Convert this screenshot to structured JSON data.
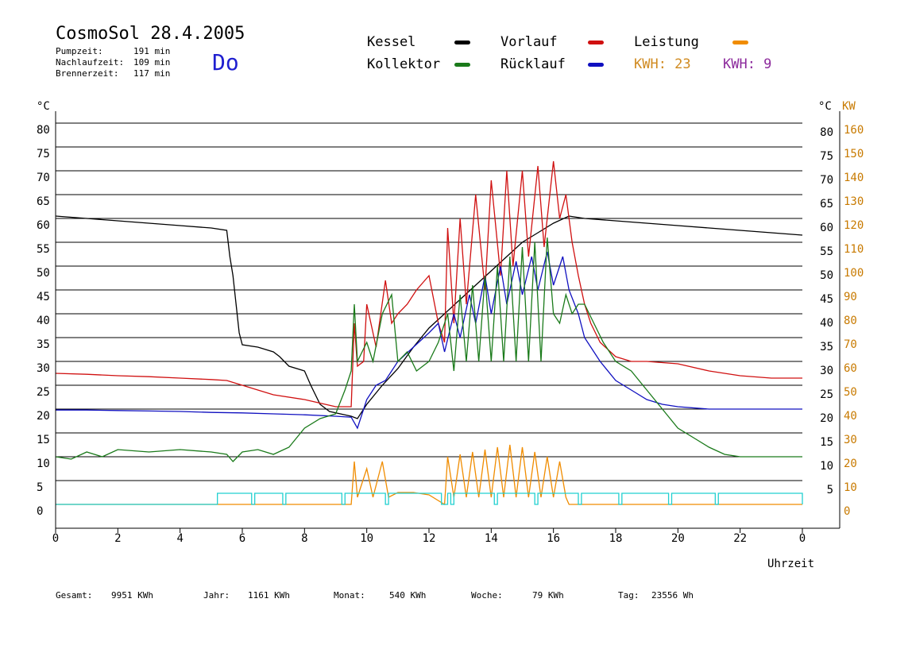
{
  "header": {
    "title": "CosmoSol 28.4.2005",
    "day": "Do",
    "info": [
      {
        "label": "Pumpzeit:",
        "value": "191 min"
      },
      {
        "label": "Nachlaufzeit:",
        "value": "109 min"
      },
      {
        "label": "Brennerzeit:",
        "value": "117 min"
      }
    ]
  },
  "legend": {
    "kessel": "Kessel",
    "kollektor": "Kollektor",
    "vorlauf": "Vorlauf",
    "ruecklauf": "Rücklauf",
    "leistung": "Leistung",
    "kwh1": "KWH: 23",
    "kwh2": "KWH: 9"
  },
  "axes": {
    "left_unit": "°C",
    "right_unit_c": "°C",
    "right_unit_kw": "KW",
    "xlabel": "Uhrzeit",
    "left_ticks": [
      "80",
      "75",
      "70",
      "65",
      "60",
      "55",
      "50",
      "45",
      "40",
      "35",
      "30",
      "25",
      "20",
      "15",
      "10",
      "5",
      "0"
    ],
    "right_c_ticks": [
      "80",
      "75",
      "70",
      "65",
      "60",
      "55",
      "50",
      "45",
      "40",
      "35",
      "30",
      "25",
      "20",
      "15",
      "10",
      "5"
    ],
    "right_kw_ticks": [
      "160",
      "150",
      "140",
      "130",
      "120",
      "110",
      "100",
      "90",
      "80",
      "70",
      "60",
      "50",
      "40",
      "30",
      "20",
      "10",
      "0"
    ],
    "x_ticks": [
      "0",
      "2",
      "4",
      "6",
      "8",
      "10",
      "12",
      "14",
      "16",
      "18",
      "20",
      "22",
      "0"
    ]
  },
  "footer": {
    "gesamt_label": "Gesamt:",
    "gesamt_value": "9951 KWh",
    "jahr_label": "Jahr:",
    "jahr_value": "1161 KWh",
    "monat_label": "Monat:",
    "monat_value": "540 KWh",
    "woche_label": "Woche:",
    "woche_value": "79 KWh",
    "tag_label": "Tag:",
    "tag_value": "23556 Wh"
  },
  "colors": {
    "kessel": "#000000",
    "kollektor": "#1a7a1a",
    "vorlauf": "#d01010",
    "ruecklauf": "#1010c0",
    "leistung": "#f08c00",
    "kwh2": "#8c2a9c",
    "pump": "#20d0d0"
  },
  "chart_data": {
    "type": "line",
    "xlabel": "Uhrzeit",
    "ylabel": "°C",
    "xlim": [
      0,
      24
    ],
    "ylim": [
      0,
      80
    ],
    "y2label": "KW",
    "y2lim": [
      0,
      160
    ],
    "series": [
      {
        "name": "Kessel",
        "x": [
          0,
          1,
          2,
          3,
          4,
          5,
          5.5,
          5.6,
          5.7,
          5.8,
          5.9,
          6,
          6.5,
          7,
          7.2,
          7.5,
          8,
          8.2,
          8.5,
          8.8,
          9.5,
          9.7,
          10,
          10.5,
          11,
          11.5,
          12,
          12.5,
          13,
          13.5,
          14,
          14.5,
          15,
          15.5,
          16,
          16.5,
          17,
          18,
          19,
          20,
          21,
          22,
          23,
          24
        ],
        "y": [
          60.5,
          60,
          59.5,
          59,
          58.5,
          58,
          57.5,
          52,
          48,
          42,
          36,
          33.5,
          33,
          32,
          31,
          29,
          28,
          25,
          21,
          19.5,
          18.5,
          18,
          21,
          25,
          28.5,
          33,
          37,
          40,
          43,
          46,
          49,
          52,
          55,
          57,
          59,
          60.5,
          60,
          59.5,
          59,
          58.5,
          58,
          57.5,
          57,
          56.5
        ]
      },
      {
        "name": "Vorlauf",
        "x": [
          0,
          1,
          2,
          3,
          4,
          5,
          5.5,
          6,
          6.5,
          7,
          8,
          9,
          9.5,
          9.6,
          9.7,
          9.9,
          10,
          10.3,
          10.6,
          10.8,
          11,
          11.3,
          11.6,
          12,
          12.3,
          12.5,
          12.6,
          12.8,
          13,
          13.2,
          13.5,
          13.8,
          14,
          14.3,
          14.5,
          14.7,
          15,
          15.2,
          15.5,
          15.7,
          16,
          16.2,
          16.4,
          16.6,
          16.8,
          17,
          17.2,
          17.5,
          18,
          18.5,
          19,
          20,
          21,
          22,
          23,
          24
        ],
        "y": [
          27.5,
          27.3,
          27,
          26.8,
          26.5,
          26.2,
          26,
          25,
          24,
          23,
          22,
          20.5,
          20.5,
          38,
          29,
          30,
          42,
          33,
          47,
          38,
          40,
          42,
          45,
          48,
          38,
          34,
          58,
          38,
          60,
          42,
          65,
          45,
          68,
          48,
          70,
          50,
          70,
          52,
          71,
          54,
          72,
          60,
          65,
          55,
          48,
          42,
          38,
          34,
          31,
          30,
          30,
          29.5,
          28,
          27,
          26.5,
          26.5
        ]
      },
      {
        "name": "Rücklauf",
        "x": [
          0,
          1,
          2,
          3,
          4,
          5,
          6,
          7,
          8,
          9,
          9.5,
          9.7,
          9.9,
          10,
          10.3,
          10.6,
          11,
          11.5,
          12,
          12.3,
          12.5,
          12.8,
          13,
          13.3,
          13.5,
          13.8,
          14,
          14.3,
          14.5,
          14.8,
          15,
          15.3,
          15.5,
          15.8,
          16,
          16.3,
          16.5,
          16.8,
          17,
          17.5,
          18,
          18.5,
          19,
          19.5,
          20,
          21,
          22,
          23,
          24
        ],
        "y": [
          19.8,
          19.8,
          19.7,
          19.6,
          19.5,
          19.3,
          19.2,
          19,
          18.8,
          18.5,
          18.3,
          16,
          20,
          22,
          25,
          26,
          30,
          33,
          36,
          38,
          32,
          40,
          35,
          44,
          38,
          48,
          40,
          50,
          42,
          51,
          44,
          52,
          45,
          53,
          46,
          52,
          45,
          40,
          35,
          30,
          26,
          24,
          22,
          21,
          20.5,
          20,
          20,
          20,
          20
        ]
      },
      {
        "name": "Kollektor",
        "x": [
          0,
          0.5,
          1,
          1.5,
          2,
          3,
          4,
          5,
          5.5,
          5.7,
          6,
          6.5,
          7,
          7.5,
          8,
          8.5,
          9,
          9.3,
          9.5,
          9.6,
          9.7,
          10,
          10.2,
          10.5,
          10.8,
          11,
          11.3,
          11.6,
          12,
          12.3,
          12.6,
          12.8,
          13,
          13.2,
          13.4,
          13.6,
          13.8,
          14,
          14.2,
          14.4,
          14.6,
          14.8,
          15,
          15.2,
          15.4,
          15.6,
          15.8,
          16,
          16.2,
          16.4,
          16.6,
          16.8,
          17,
          17.3,
          17.6,
          18,
          18.5,
          19,
          19.5,
          20,
          20.5,
          21,
          21.5,
          22,
          22.5,
          23,
          24
        ],
        "y": [
          10,
          9.5,
          11,
          10,
          11.5,
          11,
          11.5,
          11,
          10.5,
          9,
          11,
          11.5,
          10.5,
          12,
          16,
          18,
          19,
          24,
          28,
          42,
          30,
          34,
          30,
          40,
          44,
          30,
          32,
          28,
          30,
          34,
          40,
          28,
          44,
          30,
          46,
          30,
          48,
          30,
          50,
          30,
          52,
          30,
          54,
          30,
          55,
          30,
          56,
          40,
          38,
          44,
          40,
          42,
          42,
          38,
          34,
          30,
          28,
          24,
          20,
          16,
          14,
          12,
          10.5,
          10,
          10,
          10,
          10
        ]
      },
      {
        "name": "Leistung",
        "x": [
          0,
          9.5,
          9.6,
          9.7,
          10,
          10.2,
          10.5,
          10.7,
          11,
          11.5,
          12,
          12.5,
          12.6,
          12.8,
          13,
          13.2,
          13.4,
          13.6,
          13.8,
          14,
          14.2,
          14.4,
          14.6,
          14.8,
          15,
          15.2,
          15.4,
          15.6,
          15.8,
          16,
          16.2,
          16.4,
          16.5,
          24
        ],
        "y": [
          0,
          0,
          18,
          3,
          15,
          3,
          18,
          3,
          5,
          5,
          4,
          0,
          20,
          3,
          21,
          3,
          22,
          3,
          23,
          3,
          24,
          3,
          25,
          3,
          24,
          3,
          22,
          3,
          20,
          3,
          18,
          3,
          0,
          0
        ]
      },
      {
        "name": "Pumpe",
        "x": [
          0,
          4.9,
          5.2,
          6.3,
          6.4,
          7.3,
          7.4,
          9.2,
          9.3,
          10.6,
          10.7,
          12.4,
          12.6,
          12.7,
          12.8,
          14.1,
          14.2,
          15.4,
          15.5,
          16.8,
          16.9,
          18.1,
          18.2,
          19.7,
          19.8,
          21.2,
          21.3,
          24
        ],
        "y": [
          0,
          0,
          1,
          0,
          1,
          0,
          1,
          0,
          1,
          0,
          1,
          0,
          1,
          0,
          1,
          0,
          1,
          0,
          1,
          0,
          1,
          0,
          1,
          0,
          1,
          0,
          1,
          0
        ]
      }
    ]
  }
}
